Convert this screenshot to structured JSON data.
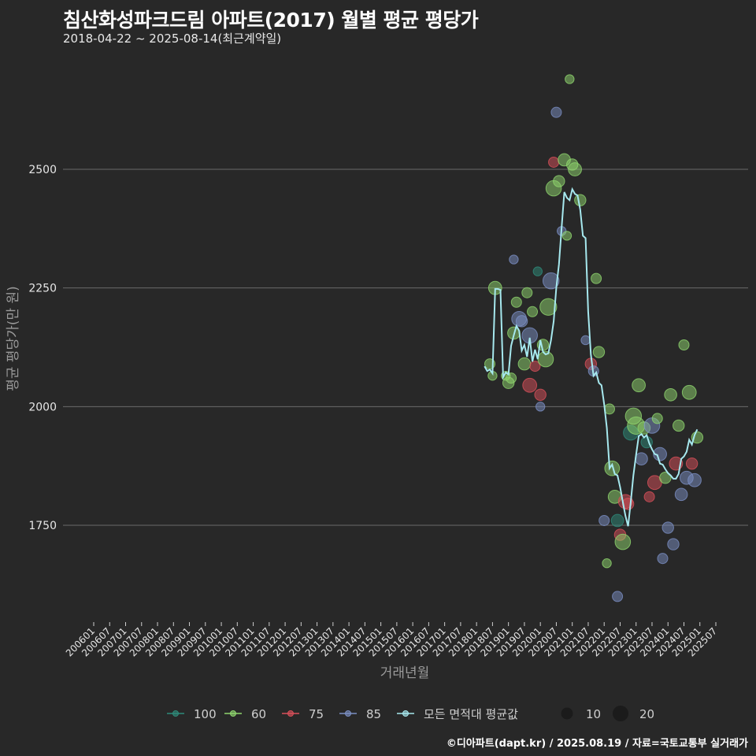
{
  "header": {
    "title": "침산화성파크드림 아파트(2017) 월별 평균 평당가",
    "subtitle": "2018-04-22 ~ 2025-08-14(최근계약일)"
  },
  "footer": "©디아파트(dapt.kr) / 2025.08.19 / 자료=국토교통부 실거래가",
  "colors": {
    "background": "#282828",
    "grid": "#6a6a6a",
    "avg_line": "#a6e8ee",
    "area_100": "#2e8b7a",
    "area_60": "#8fd66e",
    "area_75": "#d9505a",
    "area_85": "#7b8fc4"
  },
  "chart_data": {
    "type": "scatter+line",
    "title": "침산화성파크드림 아파트(2017) 월별 평균 평당가",
    "xlabel": "거래년월",
    "ylabel": "평균 평당가(만 원)",
    "ylim": [
      1560,
      2700
    ],
    "yticks": [
      1750,
      2000,
      2250,
      2500
    ],
    "xticks": [
      "200601",
      "200607",
      "200701",
      "200707",
      "200801",
      "200807",
      "200901",
      "200907",
      "201001",
      "201007",
      "201101",
      "201107",
      "201201",
      "201207",
      "201301",
      "201307",
      "201401",
      "201407",
      "201501",
      "201507",
      "201601",
      "201607",
      "201701",
      "201707",
      "201801",
      "201807",
      "201901",
      "201907",
      "202001",
      "202007",
      "202101",
      "202107",
      "202201",
      "202207",
      "202301",
      "202307",
      "202401",
      "202407",
      "202501",
      "202507"
    ],
    "legend": {
      "position": "bottom",
      "series": [
        {
          "key": "100",
          "label": "100"
        },
        {
          "key": "60",
          "label": "60"
        },
        {
          "key": "75",
          "label": "75"
        },
        {
          "key": "85",
          "label": "85"
        },
        {
          "key": "avg",
          "label": "모든 면적대 평균값"
        }
      ],
      "sizes": [
        {
          "label": "10",
          "n": 10
        },
        {
          "label": "20",
          "n": 20
        }
      ]
    },
    "avg_line": [
      {
        "x": "201804",
        "y": 2085
      },
      {
        "x": "201805",
        "y": 2075
      },
      {
        "x": "201806",
        "y": 2078
      },
      {
        "x": "201807",
        "y": 2070
      },
      {
        "x": "201808",
        "y": 2248
      },
      {
        "x": "201809",
        "y": 2248
      },
      {
        "x": "201810",
        "y": 2246
      },
      {
        "x": "201811",
        "y": 2062
      },
      {
        "x": "201812",
        "y": 2072
      },
      {
        "x": "201901",
        "y": 2068
      },
      {
        "x": "201902",
        "y": 2128
      },
      {
        "x": "201903",
        "y": 2150
      },
      {
        "x": "201904",
        "y": 2170
      },
      {
        "x": "201905",
        "y": 2160
      },
      {
        "x": "201906",
        "y": 2118
      },
      {
        "x": "201907",
        "y": 2130
      },
      {
        "x": "201908",
        "y": 2105
      },
      {
        "x": "201909",
        "y": 2145
      },
      {
        "x": "201910",
        "y": 2095
      },
      {
        "x": "201911",
        "y": 2120
      },
      {
        "x": "201912",
        "y": 2100
      },
      {
        "x": "202001",
        "y": 2140
      },
      {
        "x": "202002",
        "y": 2115
      },
      {
        "x": "202003",
        "y": 2110
      },
      {
        "x": "202004",
        "y": 2112
      },
      {
        "x": "202005",
        "y": 2140
      },
      {
        "x": "202006",
        "y": 2180
      },
      {
        "x": "202007",
        "y": 2250
      },
      {
        "x": "202008",
        "y": 2300
      },
      {
        "x": "202009",
        "y": 2378
      },
      {
        "x": "202010",
        "y": 2452
      },
      {
        "x": "202011",
        "y": 2440
      },
      {
        "x": "202012",
        "y": 2435
      },
      {
        "x": "202101",
        "y": 2458
      },
      {
        "x": "202102",
        "y": 2448
      },
      {
        "x": "202103",
        "y": 2445
      },
      {
        "x": "202104",
        "y": 2415
      },
      {
        "x": "202105",
        "y": 2360
      },
      {
        "x": "202106",
        "y": 2355
      },
      {
        "x": "202107",
        "y": 2200
      },
      {
        "x": "202108",
        "y": 2110
      },
      {
        "x": "202109",
        "y": 2065
      },
      {
        "x": "202110",
        "y": 2072
      },
      {
        "x": "202111",
        "y": 2050
      },
      {
        "x": "202112",
        "y": 2045
      },
      {
        "x": "202201",
        "y": 2005
      },
      {
        "x": "202202",
        "y": 1955
      },
      {
        "x": "202203",
        "y": 1870
      },
      {
        "x": "202204",
        "y": 1878
      },
      {
        "x": "202205",
        "y": 1858
      },
      {
        "x": "202206",
        "y": 1855
      },
      {
        "x": "202207",
        "y": 1830
      },
      {
        "x": "202208",
        "y": 1800
      },
      {
        "x": "202209",
        "y": 1770
      },
      {
        "x": "202210",
        "y": 1748
      },
      {
        "x": "202211",
        "y": 1800
      },
      {
        "x": "202212",
        "y": 1855
      },
      {
        "x": "202301",
        "y": 1898
      },
      {
        "x": "202302",
        "y": 1938
      },
      {
        "x": "202303",
        "y": 1942
      },
      {
        "x": "202304",
        "y": 1935
      },
      {
        "x": "202305",
        "y": 1940
      },
      {
        "x": "202306",
        "y": 1922
      },
      {
        "x": "202307",
        "y": 1910
      },
      {
        "x": "202308",
        "y": 1900
      },
      {
        "x": "202309",
        "y": 1898
      },
      {
        "x": "202310",
        "y": 1880
      },
      {
        "x": "202311",
        "y": 1878
      },
      {
        "x": "202312",
        "y": 1868
      },
      {
        "x": "202401",
        "y": 1860
      },
      {
        "x": "202402",
        "y": 1855
      },
      {
        "x": "202403",
        "y": 1848
      },
      {
        "x": "202404",
        "y": 1848
      },
      {
        "x": "202405",
        "y": 1858
      },
      {
        "x": "202406",
        "y": 1890
      },
      {
        "x": "202407",
        "y": 1895
      },
      {
        "x": "202408",
        "y": 1905
      },
      {
        "x": "202409",
        "y": 1930
      },
      {
        "x": "202410",
        "y": 1920
      },
      {
        "x": "202411",
        "y": 1940
      },
      {
        "x": "202412",
        "y": 1952
      }
    ],
    "points": [
      {
        "x": "201806",
        "y": 2090,
        "a": "60",
        "n": 3
      },
      {
        "x": "201807",
        "y": 2065,
        "a": "60",
        "n": 2
      },
      {
        "x": "201808",
        "y": 2250,
        "a": "60",
        "n": 6
      },
      {
        "x": "201812",
        "y": 2065,
        "a": "60",
        "n": 2
      },
      {
        "x": "201901",
        "y": 2050,
        "a": "60",
        "n": 4
      },
      {
        "x": "201902",
        "y": 2060,
        "a": "60",
        "n": 3
      },
      {
        "x": "201903",
        "y": 2155,
        "a": "60",
        "n": 5
      },
      {
        "x": "201903",
        "y": 2310,
        "a": "85",
        "n": 2
      },
      {
        "x": "201904",
        "y": 2220,
        "a": "60",
        "n": 3
      },
      {
        "x": "201905",
        "y": 2185,
        "a": "85",
        "n": 8
      },
      {
        "x": "201906",
        "y": 2180,
        "a": "85",
        "n": 4
      },
      {
        "x": "201907",
        "y": 2090,
        "a": "60",
        "n": 5
      },
      {
        "x": "201908",
        "y": 2240,
        "a": "60",
        "n": 3
      },
      {
        "x": "201909",
        "y": 2150,
        "a": "85",
        "n": 9
      },
      {
        "x": "201909",
        "y": 2045,
        "a": "75",
        "n": 7
      },
      {
        "x": "201910",
        "y": 2200,
        "a": "60",
        "n": 3
      },
      {
        "x": "201911",
        "y": 2085,
        "a": "75",
        "n": 3
      },
      {
        "x": "201912",
        "y": 2285,
        "a": "100",
        "n": 2
      },
      {
        "x": "202001",
        "y": 2025,
        "a": "75",
        "n": 4
      },
      {
        "x": "202001",
        "y": 2000,
        "a": "85",
        "n": 2
      },
      {
        "x": "202002",
        "y": 2130,
        "a": "60",
        "n": 4
      },
      {
        "x": "202003",
        "y": 2100,
        "a": "60",
        "n": 9
      },
      {
        "x": "202004",
        "y": 2210,
        "a": "60",
        "n": 11
      },
      {
        "x": "202005",
        "y": 2265,
        "a": "85",
        "n": 10
      },
      {
        "x": "202006",
        "y": 2460,
        "a": "60",
        "n": 9
      },
      {
        "x": "202006",
        "y": 2515,
        "a": "75",
        "n": 3
      },
      {
        "x": "202007",
        "y": 2620,
        "a": "85",
        "n": 3
      },
      {
        "x": "202008",
        "y": 2475,
        "a": "60",
        "n": 4
      },
      {
        "x": "202009",
        "y": 2370,
        "a": "85",
        "n": 2
      },
      {
        "x": "202010",
        "y": 2520,
        "a": "60",
        "n": 5
      },
      {
        "x": "202011",
        "y": 2360,
        "a": "60",
        "n": 2
      },
      {
        "x": "202012",
        "y": 2690,
        "a": "60",
        "n": 2
      },
      {
        "x": "202101",
        "y": 2510,
        "a": "60",
        "n": 4
      },
      {
        "x": "202102",
        "y": 2500,
        "a": "60",
        "n": 6
      },
      {
        "x": "202104",
        "y": 2435,
        "a": "60",
        "n": 4
      },
      {
        "x": "202106",
        "y": 2140,
        "a": "85",
        "n": 2
      },
      {
        "x": "202108",
        "y": 2090,
        "a": "75",
        "n": 4
      },
      {
        "x": "202109",
        "y": 2075,
        "a": "85",
        "n": 3
      },
      {
        "x": "202110",
        "y": 2270,
        "a": "60",
        "n": 3
      },
      {
        "x": "202111",
        "y": 2115,
        "a": "60",
        "n": 4
      },
      {
        "x": "202201",
        "y": 1760,
        "a": "85",
        "n": 3
      },
      {
        "x": "202202",
        "y": 1670,
        "a": "60",
        "n": 2
      },
      {
        "x": "202203",
        "y": 1995,
        "a": "60",
        "n": 3
      },
      {
        "x": "202204",
        "y": 1870,
        "a": "60",
        "n": 8
      },
      {
        "x": "202205",
        "y": 1810,
        "a": "60",
        "n": 6
      },
      {
        "x": "202206",
        "y": 1760,
        "a": "100",
        "n": 5
      },
      {
        "x": "202206",
        "y": 1600,
        "a": "85",
        "n": 3
      },
      {
        "x": "202207",
        "y": 1730,
        "a": "75",
        "n": 4
      },
      {
        "x": "202208",
        "y": 1715,
        "a": "60",
        "n": 9
      },
      {
        "x": "202209",
        "y": 1800,
        "a": "75",
        "n": 7
      },
      {
        "x": "202210",
        "y": 1795,
        "a": "75",
        "n": 4
      },
      {
        "x": "202211",
        "y": 1945,
        "a": "100",
        "n": 8
      },
      {
        "x": "202212",
        "y": 1980,
        "a": "60",
        "n": 10
      },
      {
        "x": "202301",
        "y": 1960,
        "a": "60",
        "n": 12
      },
      {
        "x": "202302",
        "y": 2045,
        "a": "60",
        "n": 6
      },
      {
        "x": "202303",
        "y": 1890,
        "a": "85",
        "n": 5
      },
      {
        "x": "202304",
        "y": 1955,
        "a": "60",
        "n": 5
      },
      {
        "x": "202305",
        "y": 1925,
        "a": "100",
        "n": 4
      },
      {
        "x": "202306",
        "y": 1810,
        "a": "75",
        "n": 3
      },
      {
        "x": "202307",
        "y": 1960,
        "a": "85",
        "n": 9
      },
      {
        "x": "202308",
        "y": 1840,
        "a": "75",
        "n": 7
      },
      {
        "x": "202309",
        "y": 1975,
        "a": "60",
        "n": 3
      },
      {
        "x": "202310",
        "y": 1900,
        "a": "85",
        "n": 6
      },
      {
        "x": "202311",
        "y": 1680,
        "a": "85",
        "n": 3
      },
      {
        "x": "202312",
        "y": 1850,
        "a": "60",
        "n": 4
      },
      {
        "x": "202401",
        "y": 1745,
        "a": "85",
        "n": 4
      },
      {
        "x": "202402",
        "y": 2025,
        "a": "60",
        "n": 5
      },
      {
        "x": "202403",
        "y": 1710,
        "a": "85",
        "n": 4
      },
      {
        "x": "202404",
        "y": 1880,
        "a": "75",
        "n": 6
      },
      {
        "x": "202405",
        "y": 1960,
        "a": "60",
        "n": 4
      },
      {
        "x": "202406",
        "y": 1815,
        "a": "85",
        "n": 5
      },
      {
        "x": "202407",
        "y": 2130,
        "a": "60",
        "n": 3
      },
      {
        "x": "202408",
        "y": 1850,
        "a": "85",
        "n": 6
      },
      {
        "x": "202409",
        "y": 2030,
        "a": "60",
        "n": 7
      },
      {
        "x": "202410",
        "y": 1880,
        "a": "75",
        "n": 4
      },
      {
        "x": "202411",
        "y": 1845,
        "a": "85",
        "n": 6
      },
      {
        "x": "202412",
        "y": 1935,
        "a": "60",
        "n": 4
      }
    ]
  }
}
